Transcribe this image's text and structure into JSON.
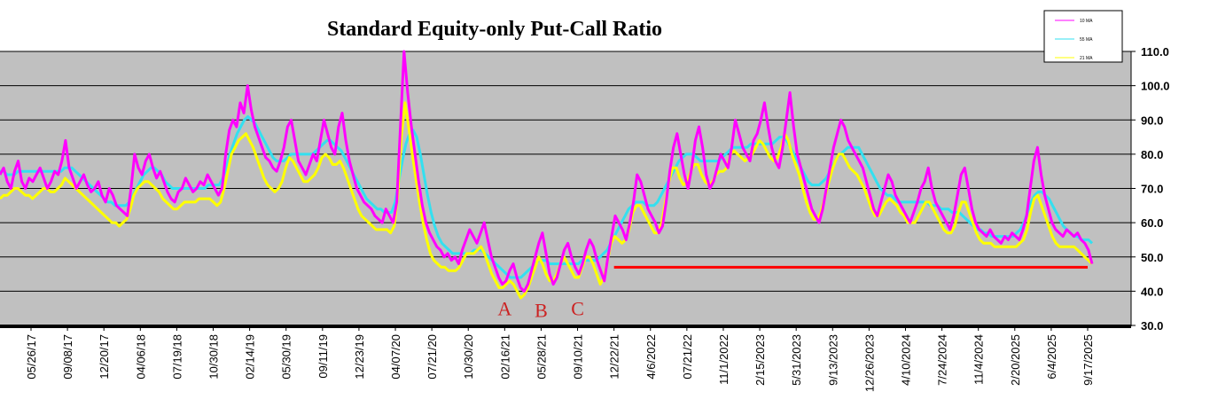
{
  "chart_data": {
    "type": "line",
    "title": "Standard Equity-only Put-Call Ratio",
    "xlabel": "",
    "ylabel": "",
    "ylim": [
      30,
      110
    ],
    "y_ticks": [
      "110.0",
      "100.0",
      "90.0",
      "80.0",
      "70.0",
      "60.0",
      "50.0",
      "40.0",
      "30.0"
    ],
    "x_tick_labels": [
      "05/26/17",
      "09/08/17",
      "12/20/17",
      "04/06/18",
      "07/19/18",
      "10/30/18",
      "02/14/19",
      "05/30/19",
      "09/11/19",
      "12/23/19",
      "04/07/20",
      "07/21/20",
      "10/30/20",
      "02/16/21",
      "05/28/21",
      "09/10/21",
      "12/22/21",
      "4/6/2022",
      "07/21/22",
      "11/1/2022",
      "2/15/2023",
      "5/31/2023",
      "9/13/2023",
      "12/26/2023",
      "4/10/2024",
      "7/24/2024",
      "11/4/2024",
      "2/20/2025",
      "6/4/2025",
      "9/17/2025"
    ],
    "grid": true,
    "legend_position": "top-right",
    "series": [
      {
        "name": "10 MA",
        "color": "#ff00ff",
        "values": [
          74,
          76,
          72,
          70,
          75,
          78,
          72,
          70,
          73,
          72,
          74,
          76,
          73,
          70,
          72,
          75,
          74,
          78,
          84,
          76,
          73,
          70,
          72,
          74,
          71,
          69,
          70,
          72,
          68,
          66,
          70,
          68,
          65,
          64,
          63,
          62,
          70,
          80,
          76,
          74,
          78,
          80,
          76,
          73,
          75,
          72,
          69,
          67,
          66,
          69,
          70,
          73,
          71,
          69,
          70,
          72,
          71,
          74,
          72,
          70,
          68,
          70,
          80,
          87,
          90,
          88,
          95,
          92,
          100,
          93,
          88,
          85,
          82,
          79,
          78,
          76,
          75,
          78,
          82,
          88,
          90,
          84,
          78,
          76,
          74,
          77,
          80,
          78,
          84,
          90,
          86,
          82,
          80,
          88,
          92,
          84,
          78,
          74,
          70,
          68,
          66,
          65,
          64,
          62,
          61,
          60,
          64,
          62,
          60,
          66,
          88,
          110,
          98,
          88,
          80,
          72,
          65,
          60,
          57,
          55,
          53,
          52,
          50,
          51,
          49,
          50,
          48,
          52,
          55,
          58,
          56,
          54,
          57,
          60,
          55,
          50,
          47,
          44,
          42,
          43,
          46,
          48,
          44,
          41,
          40,
          42,
          46,
          50,
          54,
          57,
          51,
          45,
          42,
          44,
          48,
          52,
          54,
          50,
          47,
          45,
          48,
          52,
          55,
          53,
          49,
          46,
          43,
          50,
          56,
          62,
          60,
          58,
          55,
          60,
          66,
          74,
          72,
          68,
          64,
          62,
          60,
          57,
          59,
          66,
          75,
          82,
          86,
          80,
          74,
          70,
          76,
          84,
          88,
          82,
          74,
          70,
          72,
          76,
          80,
          78,
          76,
          82,
          90,
          86,
          82,
          80,
          78,
          84,
          86,
          90,
          95,
          88,
          82,
          78,
          76,
          82,
          90,
          98,
          88,
          80,
          76,
          72,
          68,
          64,
          62,
          60,
          64,
          70,
          76,
          82,
          86,
          90,
          88,
          84,
          82,
          80,
          78,
          76,
          72,
          68,
          64,
          62,
          66,
          70,
          74,
          72,
          68,
          66,
          64,
          62,
          60,
          63,
          66,
          70,
          72,
          76,
          70,
          66,
          64,
          62,
          60,
          58,
          62,
          68,
          74,
          76,
          70,
          64,
          60,
          58,
          57,
          56,
          58,
          56,
          55,
          54,
          56,
          55,
          57,
          56,
          55,
          58,
          62,
          70,
          78,
          82,
          74,
          68,
          64,
          60,
          58,
          57,
          56,
          58,
          57,
          56,
          57,
          55,
          54,
          52,
          48
        ]
      },
      {
        "name": "55 MA",
        "color": "#33e0f0",
        "values": [
          75,
          75,
          74,
          74,
          74,
          75,
          75,
          75,
          75,
          75,
          75,
          75,
          75,
          75,
          75,
          75,
          75,
          75,
          76,
          76,
          76,
          75,
          74,
          73,
          72,
          71,
          70,
          69,
          68,
          67,
          66,
          66,
          65,
          65,
          65,
          65,
          66,
          68,
          70,
          72,
          74,
          75,
          76,
          76,
          75,
          74,
          72,
          71,
          70,
          70,
          70,
          70,
          70,
          70,
          70,
          70,
          70,
          70,
          71,
          71,
          71,
          71,
          73,
          76,
          80,
          83,
          86,
          88,
          90,
          91,
          90,
          89,
          87,
          85,
          83,
          81,
          79,
          78,
          78,
          78,
          79,
          80,
          80,
          80,
          80,
          80,
          80,
          80,
          81,
          82,
          83,
          84,
          84,
          83,
          82,
          81,
          79,
          77,
          75,
          73,
          71,
          69,
          67,
          66,
          65,
          64,
          64,
          63,
          63,
          63,
          66,
          72,
          78,
          83,
          86,
          87,
          85,
          80,
          74,
          68,
          63,
          59,
          56,
          54,
          53,
          52,
          51,
          51,
          51,
          51,
          51,
          51,
          52,
          52,
          52,
          51,
          50,
          49,
          48,
          47,
          46,
          45,
          44,
          44,
          44,
          44,
          45,
          46,
          47,
          48,
          49,
          49,
          49,
          48,
          48,
          48,
          48,
          48,
          48,
          48,
          48,
          48,
          49,
          49,
          49,
          49,
          49,
          50,
          51,
          52,
          54,
          56,
          58,
          60,
          62,
          64,
          65,
          66,
          66,
          66,
          65,
          65,
          65,
          66,
          68,
          70,
          72,
          74,
          76,
          78,
          79,
          80,
          80,
          80,
          79,
          78,
          78,
          78,
          78,
          78,
          78,
          79,
          80,
          81,
          82,
          82,
          82,
          82,
          82,
          83,
          83,
          83,
          83,
          83,
          83,
          83,
          84,
          85,
          85,
          84,
          82,
          80,
          78,
          76,
          74,
          72,
          71,
          71,
          71,
          72,
          73,
          75,
          77,
          79,
          80,
          81,
          82,
          82,
          82,
          82,
          80,
          78,
          76,
          74,
          72,
          70,
          69,
          68,
          68,
          67,
          66,
          66,
          66,
          66,
          66,
          66,
          66,
          66,
          66,
          65,
          65,
          65,
          64,
          64,
          64,
          63,
          63,
          63,
          62,
          61,
          60,
          59,
          58,
          58,
          57,
          57,
          56,
          56,
          56,
          56,
          56,
          56,
          56,
          57,
          58,
          60,
          63,
          66,
          68,
          69,
          69,
          68,
          67,
          65,
          63,
          61,
          59,
          58,
          57,
          56,
          56,
          55,
          55,
          55,
          54
        ]
      },
      {
        "name": "21 MA",
        "color": "#ffff00",
        "values": [
          67,
          68,
          68,
          69,
          70,
          70,
          69,
          68,
          68,
          67,
          68,
          69,
          70,
          70,
          69,
          69,
          70,
          71,
          73,
          72,
          71,
          70,
          69,
          68,
          67,
          66,
          65,
          64,
          63,
          62,
          61,
          60,
          60,
          59,
          60,
          61,
          64,
          68,
          70,
          71,
          72,
          72,
          71,
          70,
          69,
          67,
          66,
          65,
          64,
          64,
          65,
          66,
          66,
          66,
          66,
          67,
          67,
          67,
          67,
          66,
          65,
          66,
          70,
          75,
          80,
          82,
          84,
          85,
          86,
          84,
          82,
          79,
          76,
          73,
          71,
          70,
          69,
          70,
          72,
          76,
          79,
          78,
          76,
          74,
          72,
          72,
          73,
          74,
          76,
          79,
          80,
          79,
          77,
          77,
          78,
          76,
          73,
          70,
          67,
          64,
          62,
          61,
          60,
          59,
          58,
          58,
          58,
          58,
          57,
          59,
          68,
          85,
          95,
          88,
          80,
          73,
          66,
          60,
          55,
          51,
          49,
          48,
          47,
          47,
          46,
          46,
          46,
          47,
          49,
          51,
          51,
          51,
          52,
          53,
          51,
          48,
          45,
          43,
          41,
          41,
          42,
          43,
          42,
          40,
          38,
          39,
          41,
          44,
          47,
          50,
          48,
          45,
          43,
          43,
          45,
          48,
          50,
          48,
          46,
          44,
          44,
          47,
          50,
          50,
          48,
          45,
          42,
          44,
          49,
          54,
          56,
          55,
          54,
          55,
          58,
          63,
          65,
          65,
          63,
          61,
          59,
          57,
          57,
          60,
          66,
          72,
          76,
          76,
          73,
          71,
          72,
          75,
          77,
          77,
          74,
          72,
          71,
          72,
          74,
          75,
          75,
          76,
          80,
          81,
          80,
          79,
          78,
          79,
          80,
          82,
          84,
          83,
          81,
          79,
          78,
          79,
          82,
          86,
          84,
          80,
          77,
          74,
          70,
          66,
          63,
          61,
          61,
          63,
          67,
          71,
          75,
          78,
          80,
          80,
          78,
          76,
          75,
          74,
          72,
          70,
          67,
          64,
          62,
          62,
          64,
          66,
          67,
          66,
          65,
          63,
          62,
          60,
          60,
          60,
          62,
          64,
          66,
          66,
          64,
          62,
          60,
          58,
          57,
          57,
          59,
          63,
          66,
          66,
          63,
          60,
          57,
          55,
          54,
          54,
          54,
          53,
          53,
          53,
          53,
          53,
          53,
          53,
          54,
          55,
          58,
          63,
          67,
          68,
          65,
          62,
          59,
          56,
          54,
          53,
          53,
          53,
          53,
          53,
          52,
          51,
          50,
          49,
          48
        ]
      }
    ],
    "reference_lines": [
      {
        "color": "#ff0000",
        "y": 47,
        "x_start_label": "12/22/21",
        "x_end_label": "9/17/2025"
      }
    ],
    "annotations": [
      {
        "text": "A",
        "color": "#cc2222",
        "x_label": "02/16/21",
        "y": 35
      },
      {
        "text": "B",
        "color": "#cc2222",
        "x_label": "05/28/21",
        "y": 34.5
      },
      {
        "text": "C",
        "color": "#cc2222",
        "x_label": "09/10/21",
        "y": 35
      }
    ]
  }
}
